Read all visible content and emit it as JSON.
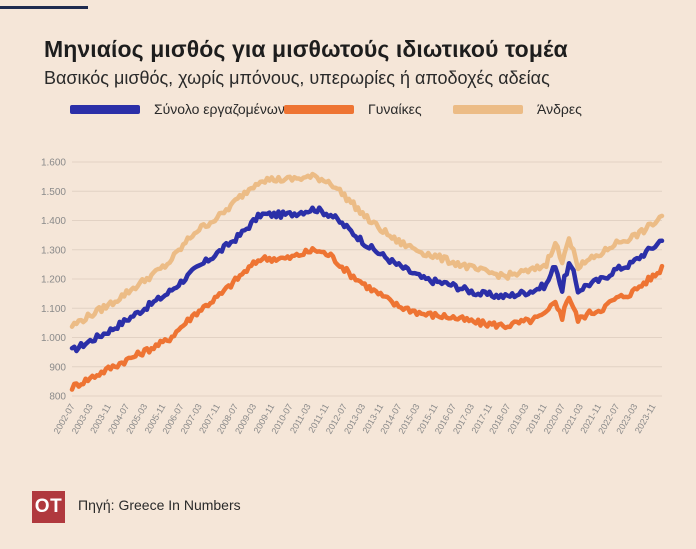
{
  "header": {
    "title": "Μηνιαίος μισθός για μισθωτούς ιδιωτικού τομέα",
    "subtitle": "Βασικός μισθός, χωρίς μπόνους, υπερωρίες ή αποδοχές αδείας"
  },
  "footer": {
    "logo": "OT",
    "source": "Πηγή: Greece In Numbers"
  },
  "colors": {
    "total": "#2b2fa8",
    "women": "#ee7433",
    "men": "#ecbc86",
    "background": "#f5e6d8",
    "grid": "#e2d2c4"
  },
  "chart_data": {
    "type": "line",
    "title": "Μηνιαίος μισθός για μισθωτούς ιδιωτικού τομέα",
    "subtitle": "Βασικός μισθός, χωρίς μπόνους, υπερωρίες ή αποδοχές αδείας",
    "legend_position": "top-left",
    "grid": true,
    "ylim": [
      800,
      1600
    ],
    "y_ticks": [
      "800",
      "900",
      "1.000",
      "1.100",
      "1.200",
      "1.300",
      "1.400",
      "1.500",
      "1.600"
    ],
    "y_tick_values": [
      800,
      900,
      1000,
      1100,
      1200,
      1300,
      1400,
      1500,
      1600
    ],
    "x_start": "2002-07",
    "x_end": "2024-03",
    "x_ticks": [
      "2002-07",
      "2003-03",
      "2003-11",
      "2004-07",
      "2005-03",
      "2005-11",
      "2006-07",
      "2007-03",
      "2007-11",
      "2008-07",
      "2009-03",
      "2009-11",
      "2010-07",
      "2011-03",
      "2011-11",
      "2012-07",
      "2013-03",
      "2013-11",
      "2014-07",
      "2015-03",
      "2015-11",
      "2016-07",
      "2017-03",
      "2017-11",
      "2018-07",
      "2019-03",
      "2019-11",
      "2020-07",
      "2021-03",
      "2021-11",
      "2022-07",
      "2023-03",
      "2023-11"
    ],
    "x_anchor_dates": [
      "2002-07",
      "2004-01",
      "2006-01",
      "2007-01",
      "2008-01",
      "2008-09",
      "2009-06",
      "2010-06",
      "2011-06",
      "2012-01",
      "2012-09",
      "2013-06",
      "2014-06",
      "2015-06",
      "2016-06",
      "2017-06",
      "2018-06",
      "2019-06",
      "2019-12",
      "2020-04",
      "2020-07",
      "2020-08",
      "2020-10",
      "2020-12",
      "2021-02",
      "2021-06",
      "2022-01",
      "2022-06",
      "2023-01",
      "2023-06",
      "2024-01",
      "2024-03"
    ],
    "series": [
      {
        "name": "Σύνολο εργαζομένων",
        "color": "#2b2fa8",
        "values": [
          955,
          1030,
          1150,
          1230,
          1300,
          1350,
          1420,
          1420,
          1440,
          1420,
          1370,
          1310,
          1250,
          1200,
          1180,
          1150,
          1140,
          1160,
          1180,
          1250,
          1160,
          1200,
          1250,
          1220,
          1160,
          1180,
          1200,
          1230,
          1250,
          1280,
          1320,
          1340
        ]
      },
      {
        "name": "Γυναίκες",
        "color": "#ee7433",
        "values": [
          830,
          900,
          990,
          1080,
          1150,
          1210,
          1270,
          1270,
          1300,
          1280,
          1220,
          1170,
          1110,
          1080,
          1070,
          1050,
          1040,
          1060,
          1080,
          1130,
          1060,
          1110,
          1140,
          1100,
          1060,
          1080,
          1100,
          1130,
          1150,
          1180,
          1220,
          1240
        ]
      },
      {
        "name": "Άνδρες",
        "color": "#ecbc86",
        "values": [
          1040,
          1120,
          1250,
          1360,
          1420,
          1480,
          1540,
          1540,
          1550,
          1530,
          1470,
          1400,
          1330,
          1290,
          1260,
          1230,
          1210,
          1230,
          1250,
          1330,
          1250,
          1290,
          1330,
          1310,
          1240,
          1260,
          1290,
          1320,
          1340,
          1360,
          1400,
          1420
        ]
      }
    ]
  }
}
